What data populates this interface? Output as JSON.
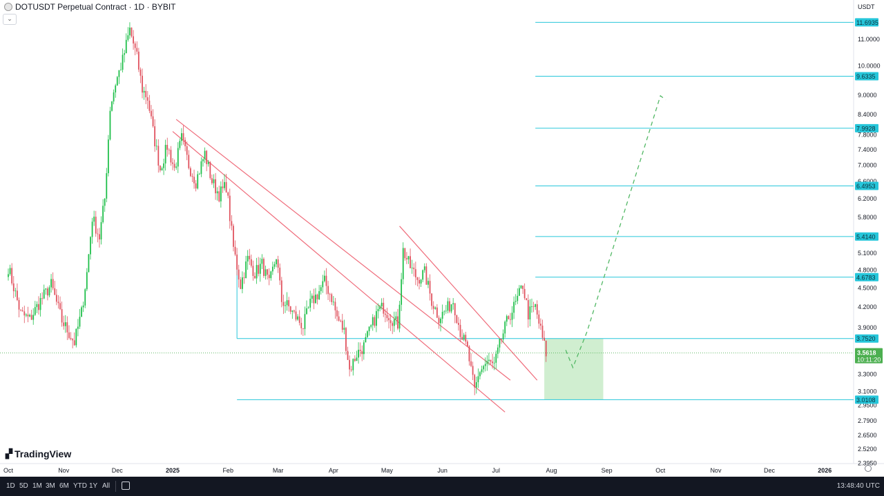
{
  "header": {
    "title": "DOTUSDT Perpetual Contract · 1D · BYBIT",
    "currency": "USDT"
  },
  "branding": {
    "logo_text": "TradingView"
  },
  "timeframes": [
    "1D",
    "5D",
    "1M",
    "3M",
    "6M",
    "YTD",
    "1Y",
    "All"
  ],
  "clock": "13:48:40 UTC",
  "colors": {
    "up": "#26a69a",
    "up_body": "#1fbf4a",
    "down": "#e0525e",
    "level_line": "#26c6da",
    "level_label_bg": "#26c6da",
    "channel": "#ef6b7a",
    "projection": "#52b865",
    "zone": "#c8ebc8",
    "price_label_bg": "#4caf50"
  },
  "chart_data": {
    "type": "candlestick",
    "ylim": [
      2.3,
      12.0
    ],
    "y_scale": "log",
    "y_ticks": [
      {
        "v": 11.0,
        "t": "11.0000"
      },
      {
        "v": 10.0,
        "t": "10.0000"
      },
      {
        "v": 9.0,
        "t": "9.0000"
      },
      {
        "v": 8.4,
        "t": "8.4000"
      },
      {
        "v": 7.8,
        "t": "7.8000"
      },
      {
        "v": 7.4,
        "t": "7.4000"
      },
      {
        "v": 7.0,
        "t": "7.0000"
      },
      {
        "v": 6.6,
        "t": "6.6000"
      },
      {
        "v": 6.2,
        "t": "6.2000"
      },
      {
        "v": 5.8,
        "t": "5.8000"
      },
      {
        "v": 5.1,
        "t": "5.1000"
      },
      {
        "v": 4.8,
        "t": "4.8000"
      },
      {
        "v": 4.5,
        "t": "4.5000"
      },
      {
        "v": 4.2,
        "t": "4.2000"
      },
      {
        "v": 3.9,
        "t": "3.9000"
      },
      {
        "v": 3.3,
        "t": "3.3000"
      },
      {
        "v": 3.1,
        "t": "3.1000"
      },
      {
        "v": 2.95,
        "t": "2.9500"
      },
      {
        "v": 2.79,
        "t": "2.7900"
      },
      {
        "v": 2.65,
        "t": "2.6500"
      },
      {
        "v": 2.52,
        "t": "2.5200"
      },
      {
        "v": 2.395,
        "t": "2.3950"
      }
    ],
    "x_ticks": [
      {
        "day": 0,
        "t": "Oct"
      },
      {
        "day": 31,
        "t": "Nov"
      },
      {
        "day": 61,
        "t": "Dec"
      },
      {
        "day": 92,
        "t": "2025"
      },
      {
        "day": 123,
        "t": "Feb"
      },
      {
        "day": 151,
        "t": "Mar"
      },
      {
        "day": 182,
        "t": "Apr"
      },
      {
        "day": 212,
        "t": "May"
      },
      {
        "day": 243,
        "t": "Jun"
      },
      {
        "day": 273,
        "t": "Jul"
      },
      {
        "day": 304,
        "t": "Aug"
      },
      {
        "day": 335,
        "t": "Sep"
      },
      {
        "day": 365,
        "t": "Oct"
      },
      {
        "day": 396,
        "t": "Nov"
      },
      {
        "day": 426,
        "t": "Dec"
      },
      {
        "day": 457,
        "t": "2026"
      }
    ],
    "levels": [
      {
        "value": 11.6935,
        "label": "11.6935",
        "from_day": 295
      },
      {
        "value": 9.6335,
        "label": "9.6335",
        "from_day": 295
      },
      {
        "value": 7.9928,
        "label": "7.9928",
        "from_day": 295
      },
      {
        "value": 6.4953,
        "label": "6.4953",
        "from_day": 295
      },
      {
        "value": 5.414,
        "label": "5.4140",
        "from_day": 295
      },
      {
        "value": 4.6783,
        "label": "4.6783",
        "from_day": 295
      },
      {
        "value": 3.752,
        "label": "3.7520",
        "from_day": 128
      },
      {
        "value": 3.0108,
        "label": "3.0108",
        "from_day": 128
      }
    ],
    "current_price": {
      "value": 3.5618,
      "label": "3.5618",
      "countdown": "10:11:20"
    },
    "channel_lines": [
      {
        "from": [
          94,
          8.25
        ],
        "to": [
          281,
          3.23
        ]
      },
      {
        "from": [
          128,
          3.753
        ],
        "to": [
          128,
          3.753
        ]
      },
      {
        "from": [
          219,
          5.62
        ],
        "to": [
          296,
          3.23
        ]
      },
      {
        "from": [
          92,
          7.9
        ],
        "to": [
          278,
          2.88
        ]
      }
    ],
    "zone": {
      "from_day": 300,
      "to_day": 333,
      "top": 3.752,
      "bottom": 3.0108
    },
    "projection": [
      [
        312,
        3.6
      ],
      [
        316,
        3.38
      ],
      [
        324,
        3.85
      ],
      [
        365,
        8.98
      ],
      [
        368,
        8.85
      ]
    ],
    "anchors": [
      [
        0,
        4.85
      ],
      [
        7,
        4.1
      ],
      [
        12,
        4.02
      ],
      [
        18,
        4.3
      ],
      [
        24,
        4.55
      ],
      [
        30,
        4.0
      ],
      [
        37,
        3.7
      ],
      [
        41,
        4.12
      ],
      [
        44,
        4.75
      ],
      [
        47,
        5.8
      ],
      [
        51,
        5.4
      ],
      [
        54,
        6.2
      ],
      [
        57,
        8.6
      ],
      [
        60,
        9.4
      ],
      [
        64,
        10.2
      ],
      [
        68,
        11.4
      ],
      [
        72,
        10.3
      ],
      [
        75,
        9.2
      ],
      [
        78,
        8.9
      ],
      [
        81,
        7.9
      ],
      [
        85,
        6.9
      ],
      [
        89,
        7.5
      ],
      [
        93,
        6.9
      ],
      [
        97,
        7.7
      ],
      [
        101,
        7.0
      ],
      [
        105,
        6.6
      ],
      [
        110,
        7.3
      ],
      [
        114,
        6.6
      ],
      [
        118,
        6.3
      ],
      [
        122,
        6.5
      ],
      [
        126,
        5.2
      ],
      [
        130,
        4.55
      ],
      [
        134,
        5.0
      ],
      [
        138,
        4.75
      ],
      [
        142,
        4.9
      ],
      [
        146,
        4.55
      ],
      [
        150,
        5.05
      ],
      [
        153,
        4.3
      ],
      [
        157,
        4.2
      ],
      [
        161,
        4.05
      ],
      [
        165,
        3.92
      ],
      [
        169,
        4.25
      ],
      [
        173,
        4.4
      ],
      [
        177,
        4.6
      ],
      [
        181,
        4.35
      ],
      [
        184,
        4.05
      ],
      [
        188,
        3.85
      ],
      [
        191,
        3.35
      ],
      [
        195,
        3.55
      ],
      [
        199,
        3.65
      ],
      [
        203,
        3.9
      ],
      [
        207,
        4.15
      ],
      [
        210,
        4.2
      ],
      [
        214,
        4.05
      ],
      [
        218,
        3.95
      ],
      [
        221,
        5.15
      ],
      [
        225,
        4.85
      ],
      [
        229,
        4.65
      ],
      [
        233,
        4.75
      ],
      [
        237,
        4.3
      ],
      [
        241,
        4.05
      ],
      [
        245,
        4.15
      ],
      [
        249,
        4.3
      ],
      [
        253,
        3.85
      ],
      [
        257,
        3.6
      ],
      [
        261,
        3.1
      ],
      [
        264,
        3.35
      ],
      [
        268,
        3.45
      ],
      [
        272,
        3.4
      ],
      [
        276,
        3.75
      ],
      [
        280,
        4.05
      ],
      [
        284,
        4.25
      ],
      [
        288,
        4.55
      ],
      [
        291,
        4.1
      ],
      [
        295,
        4.2
      ],
      [
        299,
        3.75
      ],
      [
        301,
        3.56
      ]
    ]
  }
}
